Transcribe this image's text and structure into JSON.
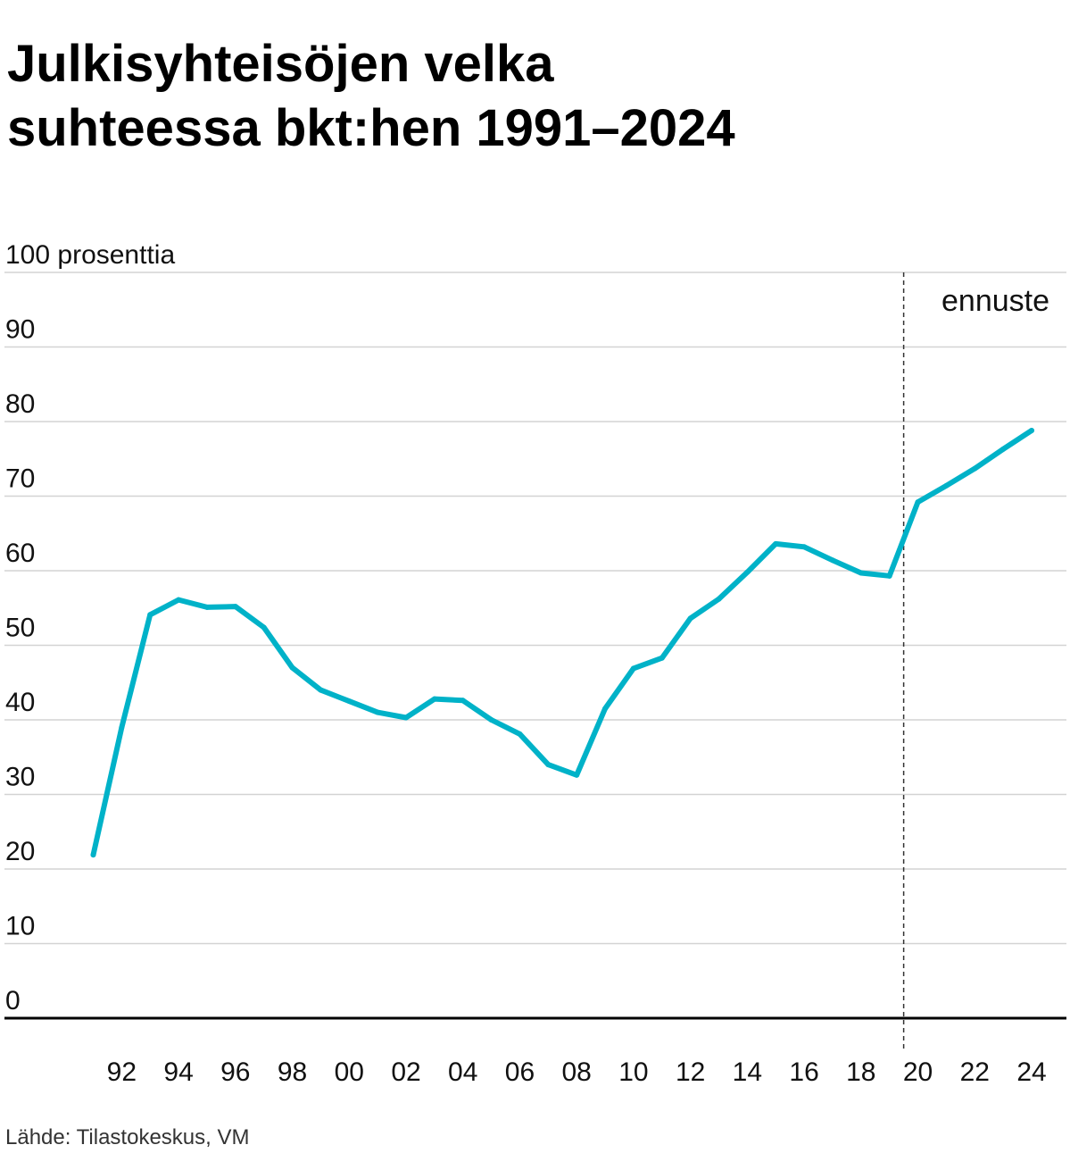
{
  "title": {
    "line1": "Julkisyhteisöjen velka",
    "line2": "suhteessa bkt:hen 1991–2024"
  },
  "source": "Lähde: Tilastokeskus, VM",
  "chart_data": {
    "type": "line",
    "title": "Julkisyhteisöjen velka suhteessa bkt:hen 1991–2024",
    "ylabel": "100 prosenttia",
    "ylim": [
      0,
      100
    ],
    "yticks": [
      0,
      10,
      20,
      30,
      40,
      50,
      60,
      70,
      80,
      90,
      100
    ],
    "ytick_labels": [
      "0",
      "10",
      "20",
      "30",
      "40",
      "50",
      "60",
      "70",
      "80",
      "90",
      "100 prosenttia"
    ],
    "xlim": [
      1991,
      2024
    ],
    "xticks": [
      1992,
      1994,
      1996,
      1998,
      2000,
      2002,
      2004,
      2006,
      2008,
      2010,
      2012,
      2014,
      2016,
      2018,
      2020,
      2022,
      2024
    ],
    "xtick_labels": [
      "92",
      "94",
      "96",
      "98",
      "00",
      "02",
      "04",
      "06",
      "08",
      "10",
      "12",
      "14",
      "16",
      "18",
      "20",
      "22",
      "24"
    ],
    "grid": true,
    "series": [
      {
        "color": "#00b2c8",
        "x": [
          1991,
          1992,
          1993,
          1994,
          1995,
          1996,
          1997,
          1998,
          1999,
          2000,
          2001,
          2002,
          2003,
          2004,
          2005,
          2006,
          2007,
          2008,
          2009,
          2010,
          2011,
          2012,
          2013,
          2014,
          2015,
          2016,
          2017,
          2018,
          2019,
          2020,
          2021,
          2022,
          2023,
          2024
        ],
        "values": [
          21.9,
          39.0,
          54.1,
          56.1,
          55.1,
          55.2,
          52.4,
          47.0,
          44.0,
          42.5,
          41.0,
          40.3,
          42.8,
          42.6,
          40.0,
          38.1,
          34.0,
          32.6,
          41.5,
          46.9,
          48.3,
          53.6,
          56.2,
          59.8,
          63.6,
          63.2,
          61.4,
          59.7,
          59.3,
          69.2,
          71.4,
          73.7,
          76.3,
          78.8
        ]
      }
    ],
    "annotation": {
      "label": "ennuste",
      "x": 2019.5
    },
    "colors": {
      "line": "#00b2c8",
      "grid": "#d3d3d3",
      "axis": "#000000",
      "divider": "#333333"
    }
  }
}
